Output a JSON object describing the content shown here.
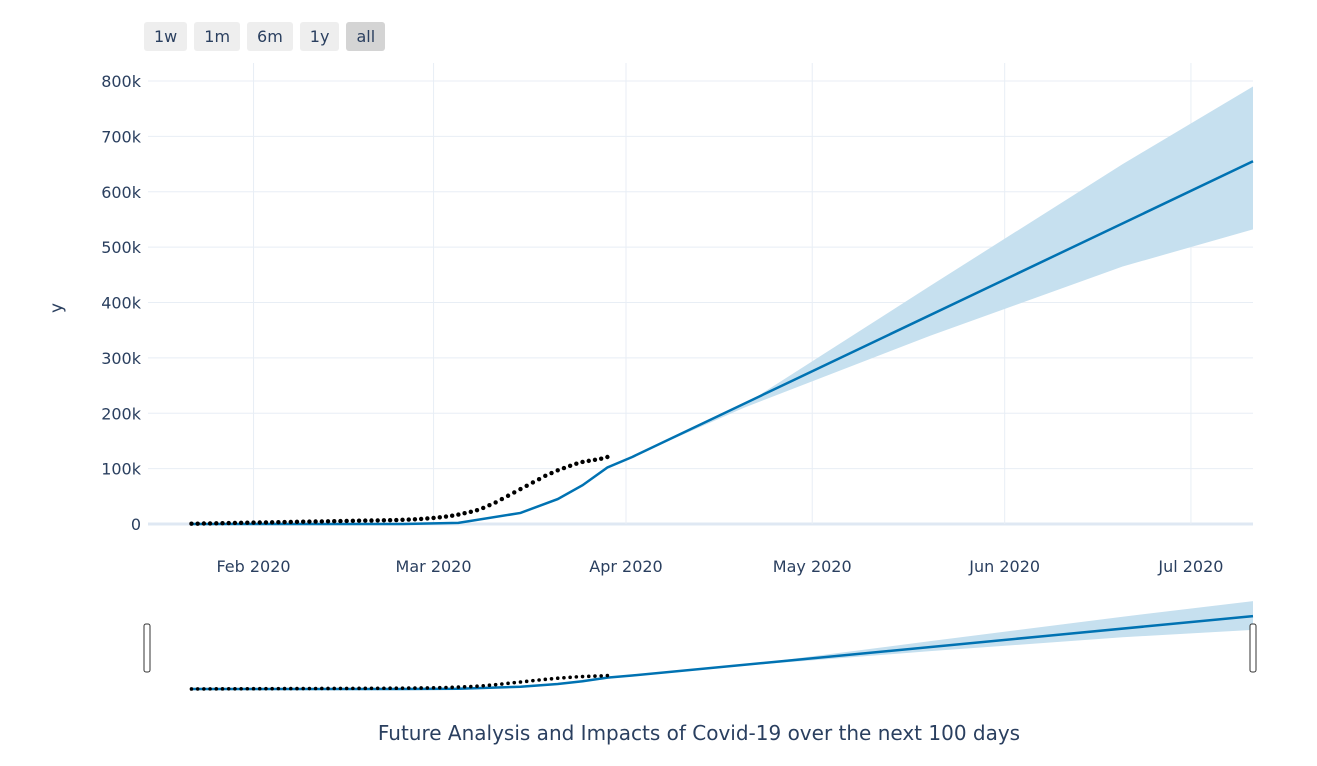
{
  "range_selector": {
    "buttons": [
      {
        "label": "1w",
        "active": false
      },
      {
        "label": "1m",
        "active": false
      },
      {
        "label": "6m",
        "active": false
      },
      {
        "label": "1y",
        "active": false
      },
      {
        "label": "all",
        "active": true
      }
    ]
  },
  "colors": {
    "line": "#0072b2",
    "band": "#c6e0ef",
    "points": "#000000",
    "grid": "#e8eef5",
    "text": "#2a3f5f"
  },
  "chart_data": {
    "type": "line",
    "title": "",
    "xlabel": "Future Analysis and Impacts of Covid-19 over the next 100 days",
    "ylabel": "y",
    "x_range": [
      "2020-01-22",
      "2020-07-11"
    ],
    "ylim": [
      0,
      800000
    ],
    "x_ticks": [
      {
        "date": "2020-02-01",
        "label": "Feb 2020"
      },
      {
        "date": "2020-03-01",
        "label": "Mar 2020"
      },
      {
        "date": "2020-04-01",
        "label": "Apr 2020"
      },
      {
        "date": "2020-05-01",
        "label": "May 2020"
      },
      {
        "date": "2020-06-01",
        "label": "Jun 2020"
      },
      {
        "date": "2020-07-01",
        "label": "Jul 2020"
      }
    ],
    "y_ticks": [
      {
        "value": 0,
        "label": "0"
      },
      {
        "value": 100000,
        "label": "100k"
      },
      {
        "value": 200000,
        "label": "200k"
      },
      {
        "value": 300000,
        "label": "300k"
      },
      {
        "value": 400000,
        "label": "400k"
      },
      {
        "value": 500000,
        "label": "500k"
      },
      {
        "value": 600000,
        "label": "600k"
      },
      {
        "value": 700000,
        "label": "700k"
      },
      {
        "value": 800000,
        "label": "800k"
      }
    ],
    "observed": {
      "start": "2020-01-22",
      "values": [
        550,
        650,
        900,
        1100,
        1300,
        1500,
        1700,
        1900,
        2100,
        2300,
        2500,
        2700,
        2900,
        3100,
        3300,
        3500,
        3700,
        3900,
        4100,
        4300,
        4500,
        4700,
        4900,
        5100,
        5300,
        5500,
        5700,
        5900,
        6100,
        6300,
        6500,
        6700,
        6900,
        7200,
        7600,
        8000,
        8500,
        9200,
        10000,
        11000,
        12000,
        13500,
        15000,
        17000,
        19500,
        22000,
        25000,
        29000,
        34000,
        39000,
        45000,
        51000,
        57000,
        63000,
        69000,
        75000,
        81000,
        87000,
        92000,
        97000,
        101000,
        105000,
        109000,
        112000,
        114000,
        116000,
        118000,
        121000
      ]
    },
    "forecast": {
      "trend": [
        {
          "x": "2020-01-22",
          "y": 0
        },
        {
          "x": "2020-02-25",
          "y": 0
        },
        {
          "x": "2020-03-05",
          "y": 2000
        },
        {
          "x": "2020-03-15",
          "y": 20000
        },
        {
          "x": "2020-03-21",
          "y": 45000
        },
        {
          "x": "2020-03-25",
          "y": 70000
        },
        {
          "x": "2020-03-29",
          "y": 102000
        },
        {
          "x": "2020-04-02",
          "y": 121000
        },
        {
          "x": "2020-07-11",
          "y": 655000
        }
      ],
      "upper": [
        {
          "x": "2020-04-02",
          "y": 121000
        },
        {
          "x": "2020-04-20",
          "y": 215000
        },
        {
          "x": "2020-05-20",
          "y": 430000
        },
        {
          "x": "2020-06-20",
          "y": 650000
        },
        {
          "x": "2020-07-11",
          "y": 790000
        }
      ],
      "lower": [
        {
          "x": "2020-04-02",
          "y": 121000
        },
        {
          "x": "2020-04-20",
          "y": 210000
        },
        {
          "x": "2020-05-20",
          "y": 340000
        },
        {
          "x": "2020-06-20",
          "y": 465000
        },
        {
          "x": "2020-07-11",
          "y": 532000
        }
      ]
    }
  }
}
